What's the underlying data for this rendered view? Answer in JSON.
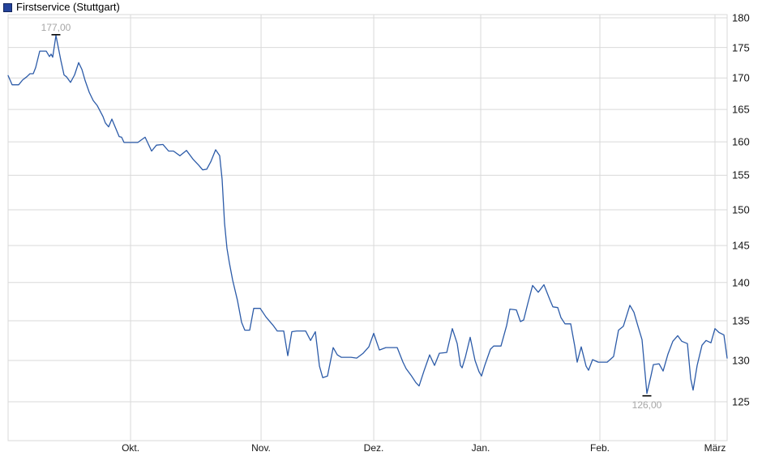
{
  "title": "Firstservice (Stuttgart)",
  "colors": {
    "line": "#2c5ba8",
    "grid": "#d9d9d9",
    "legend_swatch": "#24439b",
    "legend_swatch_border": "#14255c",
    "annotation_text": "#a6a6a6",
    "annotation_tick": "#000000",
    "axis_text": "#141414",
    "background": "#ffffff"
  },
  "chart_data": {
    "type": "line",
    "title": "Firstservice (Stuttgart)",
    "legend_position": "top-left",
    "grid": true,
    "y_axis": {
      "side": "right",
      "scale": "log",
      "ticks": [
        180,
        175,
        170,
        165,
        160,
        155,
        150,
        145,
        140,
        135,
        130,
        125
      ],
      "range_shown": [
        120.5,
        180.6
      ]
    },
    "x_axis": {
      "months": [
        {
          "label": "Okt.",
          "t": 0.1703
        },
        {
          "label": "Nov.",
          "t": 0.3518
        },
        {
          "label": "Dez.",
          "t": 0.5085
        },
        {
          "label": "Jan.",
          "t": 0.6573
        },
        {
          "label": "Feb.",
          "t": 0.823
        },
        {
          "label": "März",
          "t": 0.9831
        }
      ]
    },
    "annotations": [
      {
        "text": "177,00",
        "t": 0.0665,
        "value": 177,
        "placement": "above"
      },
      {
        "text": "126,00",
        "t": 0.8884,
        "value": 126,
        "placement": "below"
      }
    ],
    "series": [
      {
        "name": "Firstservice (Stuttgart)",
        "color": "#2c5ba8",
        "points": [
          [
            0,
            170.4
          ],
          [
            0.0056,
            168.9
          ],
          [
            0.0147,
            168.9
          ],
          [
            0.0203,
            169.7
          ],
          [
            0.0259,
            170.2
          ],
          [
            0.0304,
            170.7
          ],
          [
            0.035,
            170.7
          ],
          [
            0.0383,
            171.7
          ],
          [
            0.044,
            174.4
          ],
          [
            0.053,
            174.4
          ],
          [
            0.0575,
            173.5
          ],
          [
            0.0598,
            173.9
          ],
          [
            0.062,
            173.4
          ],
          [
            0.0665,
            177
          ],
          [
            0.0733,
            172.9
          ],
          [
            0.0778,
            170.5
          ],
          [
            0.0812,
            170.2
          ],
          [
            0.0868,
            169.3
          ],
          [
            0.0924,
            170.5
          ],
          [
            0.0981,
            172.5
          ],
          [
            0.1026,
            171.4
          ],
          [
            0.1071,
            169.6
          ],
          [
            0.1128,
            167.7
          ],
          [
            0.1184,
            166.4
          ],
          [
            0.124,
            165.6
          ],
          [
            0.1319,
            163.9
          ],
          [
            0.1353,
            162.9
          ],
          [
            0.1398,
            162.3
          ],
          [
            0.1443,
            163.5
          ],
          [
            0.15,
            162
          ],
          [
            0.1545,
            160.8
          ],
          [
            0.1578,
            160.7
          ],
          [
            0.1612,
            159.9
          ],
          [
            0.1804,
            159.9
          ],
          [
            0.1905,
            160.7
          ],
          [
            0.1996,
            158.6
          ],
          [
            0.2063,
            159.5
          ],
          [
            0.2154,
            159.6
          ],
          [
            0.2232,
            158.6
          ],
          [
            0.23,
            158.6
          ],
          [
            0.239,
            157.9
          ],
          [
            0.248,
            158.7
          ],
          [
            0.2571,
            157.4
          ],
          [
            0.265,
            156.5
          ],
          [
            0.2706,
            155.8
          ],
          [
            0.2762,
            155.9
          ],
          [
            0.2818,
            157
          ],
          [
            0.2886,
            158.8
          ],
          [
            0.2943,
            157.9
          ],
          [
            0.2976,
            154.4
          ],
          [
            0.301,
            148.1
          ],
          [
            0.3044,
            144.6
          ],
          [
            0.3078,
            142.6
          ],
          [
            0.3123,
            140.3
          ],
          [
            0.3191,
            137.6
          ],
          [
            0.3247,
            134.8
          ],
          [
            0.3292,
            133.8
          ],
          [
            0.336,
            133.8
          ],
          [
            0.3416,
            136.6
          ],
          [
            0.3506,
            136.6
          ],
          [
            0.3585,
            135.5
          ],
          [
            0.3687,
            134.4
          ],
          [
            0.3743,
            133.7
          ],
          [
            0.3833,
            133.7
          ],
          [
            0.389,
            130.6
          ],
          [
            0.3946,
            133.6
          ],
          [
            0.4014,
            133.7
          ],
          [
            0.4138,
            133.7
          ],
          [
            0.4206,
            132.5
          ],
          [
            0.4273,
            133.6
          ],
          [
            0.433,
            129.3
          ],
          [
            0.4375,
            127.9
          ],
          [
            0.4442,
            128.1
          ],
          [
            0.4521,
            131.6
          ],
          [
            0.4578,
            130.7
          ],
          [
            0.4634,
            130.4
          ],
          [
            0.4769,
            130.4
          ],
          [
            0.4848,
            130.3
          ],
          [
            0.4938,
            130.9
          ],
          [
            0.5017,
            131.7
          ],
          [
            0.5085,
            133.4
          ],
          [
            0.5164,
            131.3
          ],
          [
            0.5254,
            131.6
          ],
          [
            0.5412,
            131.6
          ],
          [
            0.5491,
            129.8
          ],
          [
            0.5536,
            129
          ],
          [
            0.5603,
            128.2
          ],
          [
            0.5671,
            127.3
          ],
          [
            0.5716,
            126.9
          ],
          [
            0.5784,
            128.7
          ],
          [
            0.5863,
            130.7
          ],
          [
            0.593,
            129.4
          ],
          [
            0.5998,
            130.9
          ],
          [
            0.61,
            131
          ],
          [
            0.6178,
            134
          ],
          [
            0.6246,
            132.1
          ],
          [
            0.6291,
            129.4
          ],
          [
            0.6314,
            129.1
          ],
          [
            0.6359,
            130.4
          ],
          [
            0.6426,
            132.9
          ],
          [
            0.6494,
            130
          ],
          [
            0.655,
            128.6
          ],
          [
            0.6584,
            128.1
          ],
          [
            0.6629,
            129.4
          ],
          [
            0.6708,
            131.4
          ],
          [
            0.6753,
            131.8
          ],
          [
            0.6855,
            131.8
          ],
          [
            0.6934,
            134.4
          ],
          [
            0.6979,
            136.5
          ],
          [
            0.7069,
            136.4
          ],
          [
            0.7125,
            134.9
          ],
          [
            0.717,
            135.1
          ],
          [
            0.7227,
            137.2
          ],
          [
            0.7294,
            139.6
          ],
          [
            0.7373,
            138.7
          ],
          [
            0.7452,
            139.7
          ],
          [
            0.7531,
            137.8
          ],
          [
            0.7576,
            136.8
          ],
          [
            0.7644,
            136.7
          ],
          [
            0.7689,
            135.4
          ],
          [
            0.7745,
            134.6
          ],
          [
            0.7824,
            134.6
          ],
          [
            0.7881,
            131.8
          ],
          [
            0.7914,
            129.8
          ],
          [
            0.7971,
            131.7
          ],
          [
            0.8038,
            129.3
          ],
          [
            0.8072,
            128.8
          ],
          [
            0.8128,
            130.1
          ],
          [
            0.8207,
            129.8
          ],
          [
            0.8331,
            129.8
          ],
          [
            0.8421,
            130.5
          ],
          [
            0.8489,
            133.8
          ],
          [
            0.8557,
            134.3
          ],
          [
            0.8647,
            137
          ],
          [
            0.8703,
            136.1
          ],
          [
            0.876,
            134.3
          ],
          [
            0.8816,
            132.6
          ],
          [
            0.8884,
            126
          ],
          [
            0.894,
            128.1
          ],
          [
            0.8974,
            129.5
          ],
          [
            0.9053,
            129.6
          ],
          [
            0.9109,
            128.7
          ],
          [
            0.9177,
            130.8
          ],
          [
            0.9245,
            132.4
          ],
          [
            0.9312,
            133.1
          ],
          [
            0.9369,
            132.4
          ],
          [
            0.9448,
            132.1
          ],
          [
            0.9493,
            127.8
          ],
          [
            0.9526,
            126.4
          ],
          [
            0.9583,
            129.4
          ],
          [
            0.965,
            131.9
          ],
          [
            0.9707,
            132.5
          ],
          [
            0.9775,
            132.2
          ],
          [
            0.9831,
            134
          ],
          [
            0.9887,
            133.5
          ],
          [
            0.9955,
            133.2
          ],
          [
            1,
            130.3
          ]
        ]
      }
    ]
  }
}
